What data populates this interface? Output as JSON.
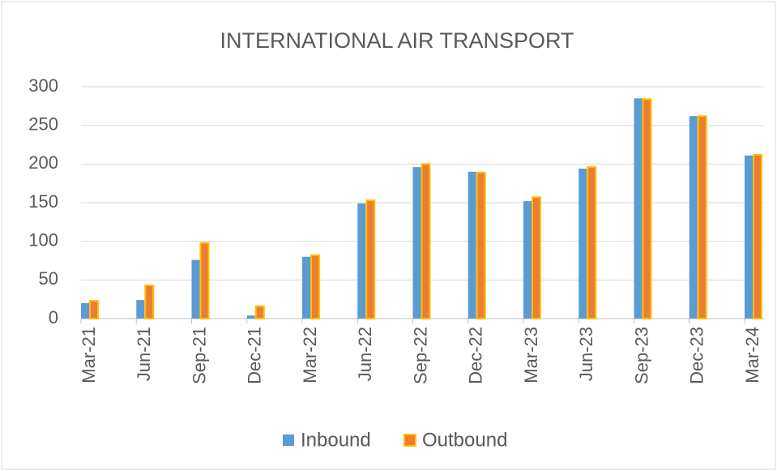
{
  "chart_data": {
    "type": "bar",
    "title": "INTERNATIONAL AIR TRANSPORT",
    "categories": [
      "Mar-21",
      "Jun-21",
      "Sep-21",
      "Dec-21",
      "Mar-22",
      "Jun-22",
      "Sep-22",
      "Dec-22",
      "Mar-23",
      "Jun-23",
      "Sep-23",
      "Dec-23",
      "Mar-24"
    ],
    "series": [
      {
        "name": "Inbound",
        "color": "#5b9bd5",
        "values": [
          20,
          24,
          76,
          4,
          80,
          149,
          196,
          190,
          152,
          194,
          285,
          262,
          211
        ]
      },
      {
        "name": "Outbound",
        "color": "#ed7d31",
        "edge": "#ffc000",
        "values": [
          23,
          43,
          98,
          16,
          82,
          153,
          200,
          189,
          157,
          196,
          284,
          262,
          212
        ]
      }
    ],
    "ylim": [
      0,
      300
    ],
    "yticks": [
      0,
      50,
      100,
      150,
      200,
      250,
      300
    ],
    "grid": true,
    "legend": "bottom"
  }
}
